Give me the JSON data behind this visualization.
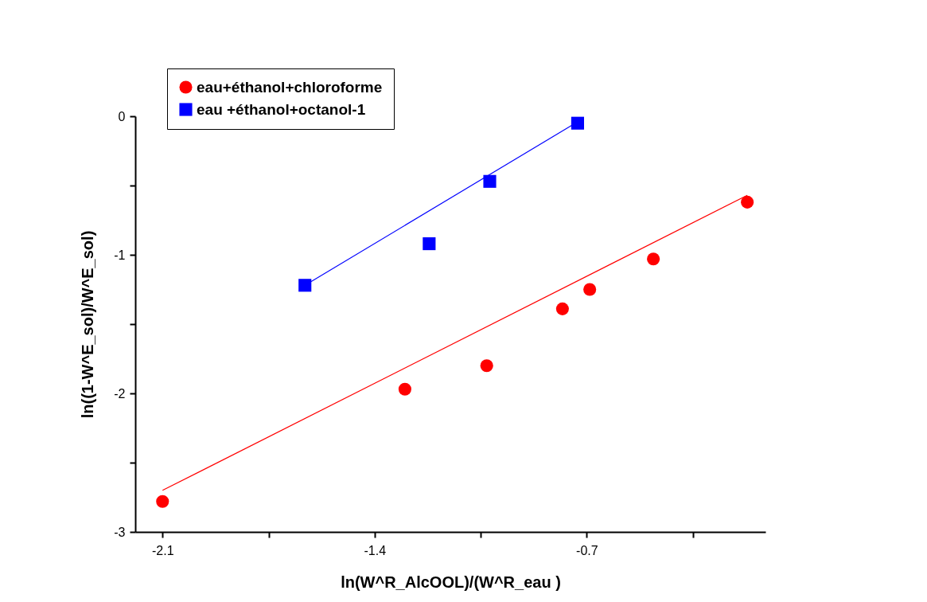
{
  "chart_data": {
    "type": "scatter",
    "xlabel": "ln(W^R_AlcOOL)/(W^R_eau )",
    "ylabel": "ln((1-W^E_sol)/W^E_sol)",
    "xlim": [
      -2.19,
      -0.11
    ],
    "xticks": [
      -2.1,
      {
        "value": -1.75,
        "label": null
      },
      -1.4,
      {
        "value": -1.05,
        "label": null
      },
      -0.7,
      {
        "value": -0.35,
        "label": null
      }
    ],
    "ylim": [
      -3,
      0
    ],
    "yticks": [
      -3,
      {
        "value": -2.5,
        "label": null
      },
      -2,
      {
        "value": -1.5,
        "label": null
      },
      -1,
      {
        "value": -0.5,
        "label": null
      },
      0
    ],
    "grid": false,
    "legend": "top left",
    "series": [
      {
        "name": "eau+éthanol+chloroforme",
        "marker": "circle",
        "color": "#ff0000",
        "x": [
          -2.1,
          -1.3,
          -1.03,
          -0.78,
          -0.69,
          -0.48,
          -0.17
        ],
        "values": [
          -2.78,
          -1.97,
          -1.8,
          -1.39,
          -1.25,
          -1.03,
          -0.62
        ]
      },
      {
        "name": "eau +éthanol+octanol-1",
        "marker": "square",
        "color": "#0000ff",
        "x": [
          -1.63,
          -1.22,
          -1.02,
          -0.73
        ],
        "values": [
          -1.22,
          -0.92,
          -0.47,
          -0.05
        ]
      },
      {
        "type": "line",
        "marker": "none",
        "line_style": "solid",
        "color": "#ff0000",
        "x": [
          -2.1,
          -0.17
        ],
        "values": [
          -2.7,
          -0.57
        ]
      },
      {
        "type": "line",
        "marker": "none",
        "line_style": "solid",
        "color": "#0000ff",
        "x": [
          -1.63,
          -0.73
        ],
        "values": [
          -1.22,
          -0.04
        ]
      }
    ]
  }
}
